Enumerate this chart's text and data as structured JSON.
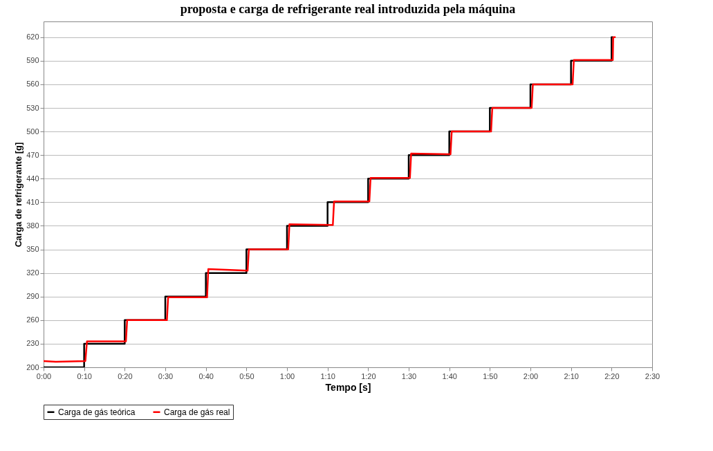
{
  "chart_data": {
    "type": "line",
    "title": "proposta e carga de refrigerante real introduzida pela máquina",
    "xlabel": "Tempo [s]",
    "ylabel": "Carga de refrigerante [g]",
    "xlim": [
      0,
      150
    ],
    "xticks": [
      {
        "value": 0,
        "label": "0:00"
      },
      {
        "value": 10,
        "label": "0:10"
      },
      {
        "value": 20,
        "label": "0:20"
      },
      {
        "value": 30,
        "label": "0:30"
      },
      {
        "value": 40,
        "label": "0:40"
      },
      {
        "value": 50,
        "label": "0:50"
      },
      {
        "value": 60,
        "label": "1:00"
      },
      {
        "value": 70,
        "label": "1:10"
      },
      {
        "value": 80,
        "label": "1:20"
      },
      {
        "value": 90,
        "label": "1:30"
      },
      {
        "value": 100,
        "label": "1:40"
      },
      {
        "value": 110,
        "label": "1:50"
      },
      {
        "value": 120,
        "label": "2:00"
      },
      {
        "value": 130,
        "label": "2:10"
      },
      {
        "value": 140,
        "label": "2:20"
      },
      {
        "value": 150,
        "label": "2:30"
      }
    ],
    "ylim": [
      200,
      640
    ],
    "yticks": [
      200,
      230,
      260,
      290,
      320,
      350,
      380,
      410,
      440,
      470,
      500,
      530,
      560,
      590,
      620
    ],
    "grid": "y",
    "legend": "bottom",
    "marker": "none",
    "line_style": "solid",
    "series": [
      {
        "name": "Carga de gás teórica",
        "color": "#000000",
        "x": [
          0,
          10,
          10,
          20,
          20,
          30,
          30,
          40,
          40,
          50,
          50,
          60,
          60,
          70,
          70,
          80,
          80,
          90,
          90,
          100,
          100,
          110,
          110,
          120,
          120,
          130,
          130,
          140,
          140,
          140.3
        ],
        "values": [
          200,
          200,
          230,
          230,
          260,
          260,
          290,
          290,
          320,
          320,
          350,
          350,
          380,
          380,
          410,
          410,
          440,
          440,
          470,
          470,
          500,
          500,
          530,
          530,
          560,
          560,
          590,
          590,
          620,
          620
        ]
      },
      {
        "name": "Carga de gás real",
        "color": "#ff0000",
        "x": [
          0,
          3,
          10.3,
          10.7,
          20.3,
          20.6,
          30.4,
          30.7,
          40.3,
          40.6,
          50.3,
          50.6,
          60.3,
          60.6,
          71.3,
          71.6,
          80.3,
          80.6,
          90.3,
          90.6,
          100.3,
          100.6,
          110.3,
          110.6,
          120.3,
          120.6,
          130.4,
          130.7,
          140.3,
          140.4,
          141
        ],
        "values": [
          208,
          207,
          208,
          233,
          233,
          260,
          260,
          289,
          289,
          325,
          323,
          350,
          350,
          382,
          381,
          411,
          411,
          441,
          441,
          472,
          471,
          500,
          500,
          530,
          530,
          560,
          560,
          591,
          591,
          620,
          620
        ]
      }
    ]
  }
}
